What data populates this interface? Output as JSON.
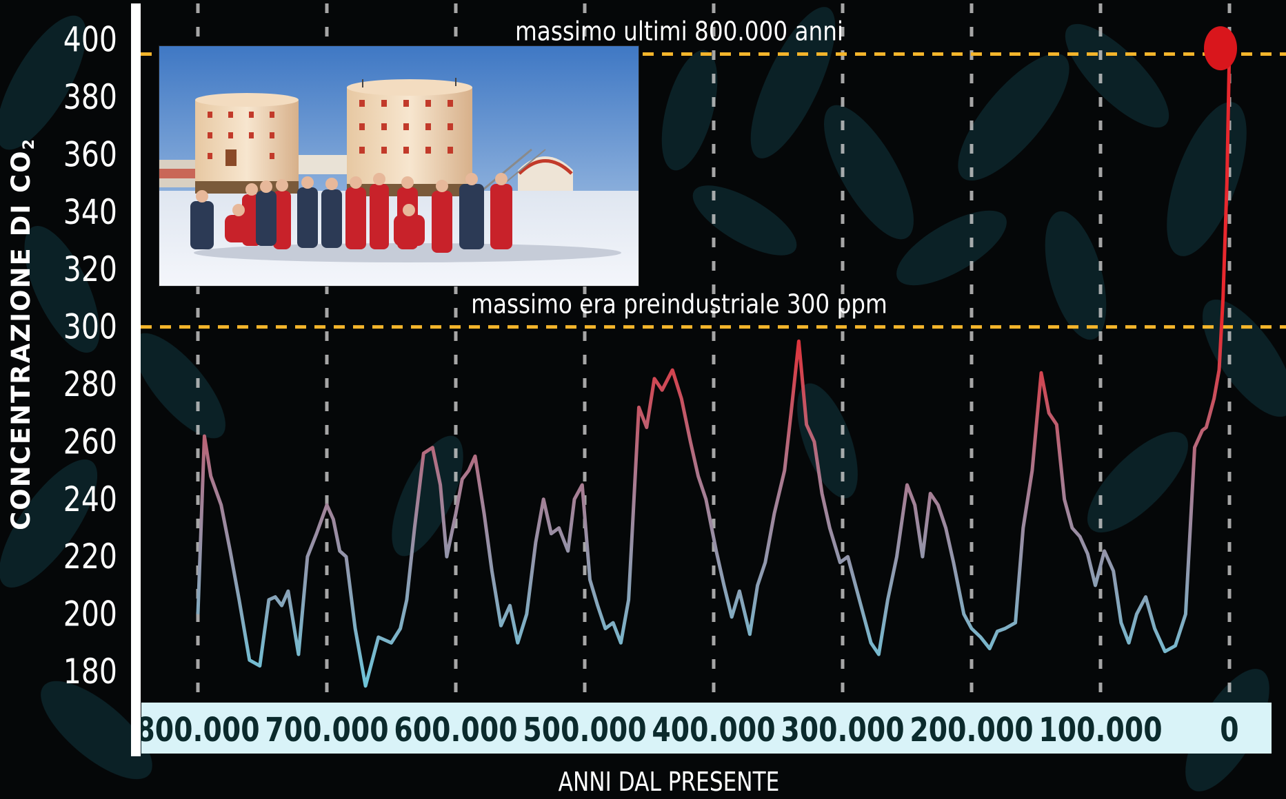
{
  "colors": {
    "background": "#050708",
    "leaf": "#0e2a30",
    "guide_line": "#f4b52b",
    "axis_band": "#d9f3f8",
    "axis_text": "#0b2a2c",
    "line_high": "#e8282e",
    "line_low": "#6fc3d8",
    "current_marker": "#d9161c"
  },
  "chart_data": {
    "type": "line",
    "title": "",
    "xlabel": "ANNI DAL PRESENTE",
    "ylabel": "CONCENTRAZIONE DI CO",
    "ylabel_subscript": "2",
    "x_unit": "years before present",
    "y_unit": "ppm",
    "xlim": [
      800000,
      0
    ],
    "ylim": [
      170,
      400
    ],
    "y_ticks": [
      400,
      380,
      360,
      340,
      320,
      300,
      280,
      260,
      240,
      220,
      200,
      180
    ],
    "x_ticks": [
      800000,
      700000,
      600000,
      500000,
      400000,
      300000,
      200000,
      100000,
      0
    ],
    "x_tick_labels": [
      "800.000",
      "700.000",
      "600.000",
      "500.000",
      "400.000",
      "300.000",
      "200.000",
      "100.000",
      "0"
    ],
    "grid": "vertical dashed at each x tick",
    "annotations": [
      {
        "text": "massimo ultimi 800.000 anni",
        "y": 395
      },
      {
        "text": "massimo era preindustriale 300 ppm",
        "y": 300
      }
    ],
    "current_marker": {
      "x": 0,
      "y": 397
    },
    "series": [
      {
        "x": [
          800000,
          795000,
          790000,
          782000,
          775000,
          768000,
          760000,
          752000,
          745000,
          740000,
          735000,
          730000,
          722000,
          715000,
          708000,
          700000,
          695000,
          690000,
          685000,
          678000,
          670000,
          660000,
          650000,
          643000,
          638000,
          632000,
          625000,
          618000,
          612000,
          607000,
          600000,
          595000,
          590000,
          585000,
          578000,
          572000,
          565000,
          558000,
          552000,
          545000,
          538000,
          532000,
          526000,
          520000,
          513000,
          508000,
          502000,
          496000,
          490000,
          484000,
          478000,
          472000,
          466000,
          458000,
          452000,
          446000,
          440000,
          432000,
          425000,
          418000,
          412000,
          406000,
          398000,
          392000,
          386000,
          380000,
          372000,
          366000,
          360000,
          353000,
          345000,
          340000,
          334000,
          328000,
          322000,
          316000,
          310000,
          302000,
          296000,
          290000,
          284000,
          278000,
          272000,
          265000,
          258000,
          250000,
          244000,
          238000,
          232000,
          226000,
          220000,
          214000,
          206000,
          200000,
          193000,
          186000,
          180000,
          174000,
          166000,
          160000,
          153000,
          146000,
          140000,
          134000,
          128000,
          122000,
          116000,
          110000,
          104000,
          97000,
          90000,
          84000,
          78000,
          72000,
          65000,
          58000,
          50000,
          42000,
          34000,
          27000,
          21000,
          18000,
          15000,
          12000,
          10000,
          8000,
          5000,
          2000,
          0
        ],
        "y": [
          200,
          262,
          248,
          238,
          222,
          205,
          184,
          182,
          205,
          206,
          203,
          208,
          186,
          220,
          228,
          238,
          233,
          222,
          220,
          195,
          175,
          192,
          190,
          195,
          205,
          230,
          256,
          258,
          245,
          220,
          235,
          247,
          250,
          255,
          235,
          215,
          196,
          203,
          190,
          200,
          225,
          240,
          228,
          230,
          222,
          240,
          245,
          212,
          203,
          195,
          197,
          190,
          205,
          272,
          265,
          282,
          278,
          285,
          275,
          260,
          248,
          240,
          222,
          210,
          199,
          208,
          193,
          210,
          218,
          235,
          250,
          270,
          295,
          266,
          260,
          242,
          230,
          218,
          220,
          210,
          200,
          190,
          186,
          205,
          220,
          245,
          238,
          220,
          242,
          238,
          230,
          218,
          200,
          195,
          192,
          188,
          194,
          195,
          197,
          230,
          250,
          284,
          270,
          266,
          240,
          230,
          227,
          221,
          210,
          222,
          215,
          197,
          190,
          200,
          206,
          195,
          187,
          189,
          200,
          258,
          264,
          265,
          270,
          275,
          280,
          285,
          310,
          350,
          397
        ]
      }
    ]
  },
  "photo": {
    "description_visible": false,
    "signs": []
  }
}
